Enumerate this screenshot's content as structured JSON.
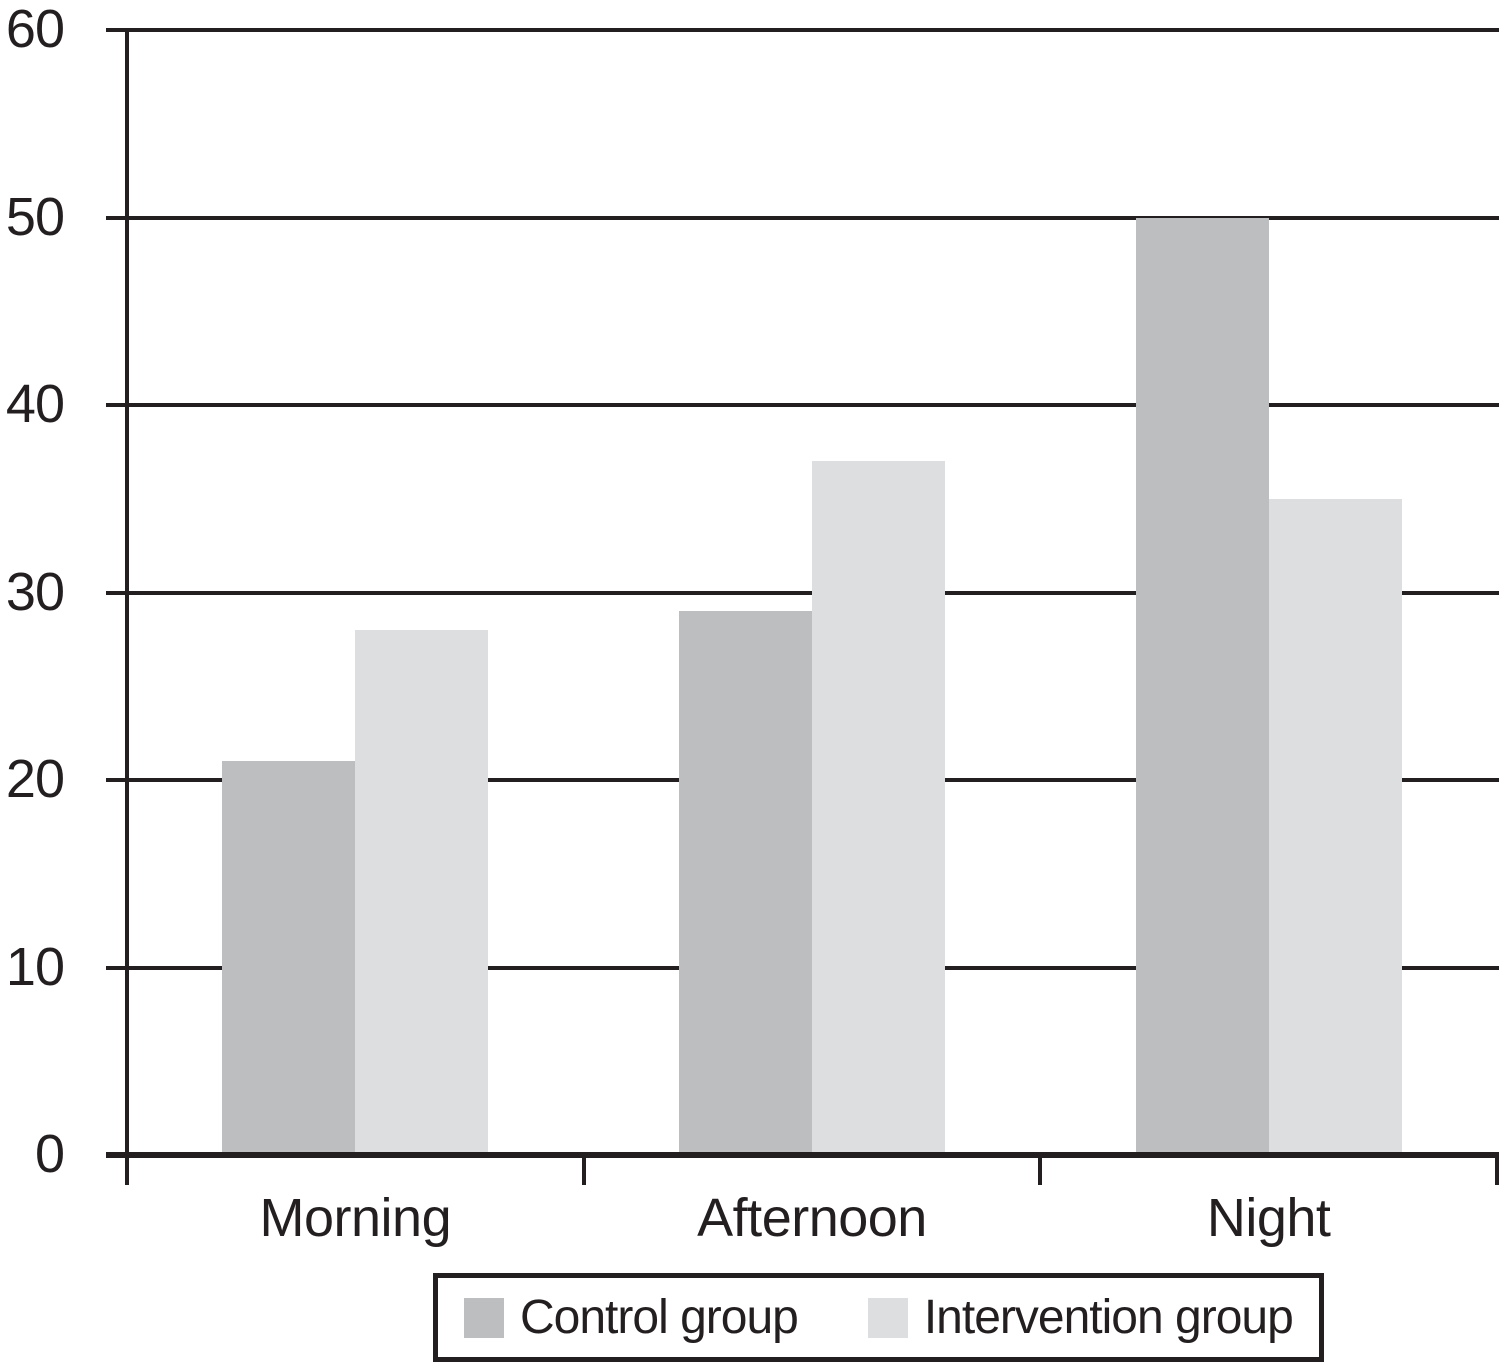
{
  "chart_data": {
    "type": "bar",
    "categories": [
      "Morning",
      "Afternoon",
      "Night"
    ],
    "series": [
      {
        "name": "Control group",
        "color": "#bcbec0",
        "values": [
          21,
          29,
          50
        ]
      },
      {
        "name": "Intervention group",
        "color": "#dcdee0",
        "values": [
          28,
          37,
          35
        ]
      }
    ],
    "title": "",
    "xlabel": "",
    "ylabel": "",
    "ylim": [
      0,
      60
    ],
    "yticks": [
      0,
      10,
      20,
      30,
      40,
      50,
      60
    ],
    "grid": true,
    "legend_position": "bottom",
    "axis_color": "#231f20",
    "background": "#ffffff"
  }
}
